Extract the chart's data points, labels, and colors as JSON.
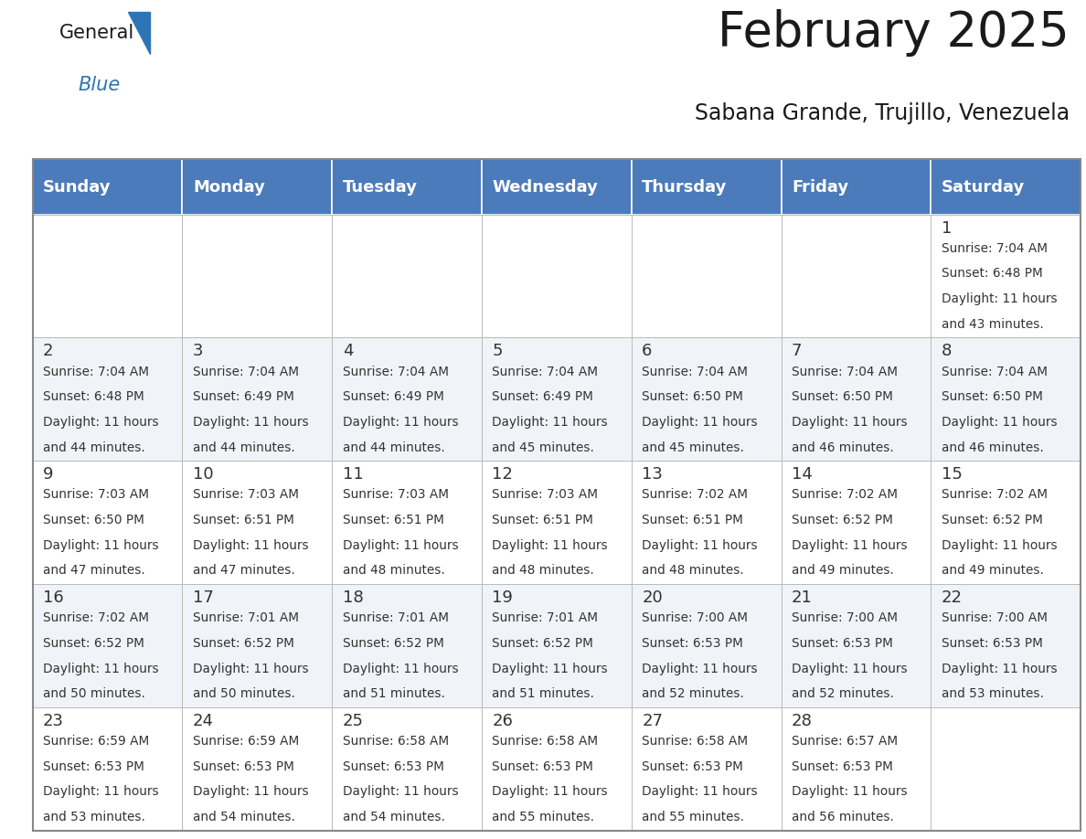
{
  "title": "February 2025",
  "subtitle": "Sabana Grande, Trujillo, Venezuela",
  "header_color": "#4b7bba",
  "header_text_color": "#FFFFFF",
  "cell_bg_white": "#FFFFFF",
  "cell_bg_gray": "#f0f4f8",
  "grid_color": "#aaaaaa",
  "text_color": "#333333",
  "day_num_color": "#333333",
  "day_headers": [
    "Sunday",
    "Monday",
    "Tuesday",
    "Wednesday",
    "Thursday",
    "Friday",
    "Saturday"
  ],
  "title_fontsize": 38,
  "subtitle_fontsize": 17,
  "header_fontsize": 13,
  "day_num_fontsize": 13,
  "info_fontsize": 9.8,
  "calendar": [
    [
      null,
      null,
      null,
      null,
      null,
      null,
      1
    ],
    [
      2,
      3,
      4,
      5,
      6,
      7,
      8
    ],
    [
      9,
      10,
      11,
      12,
      13,
      14,
      15
    ],
    [
      16,
      17,
      18,
      19,
      20,
      21,
      22
    ],
    [
      23,
      24,
      25,
      26,
      27,
      28,
      null
    ]
  ],
  "day_info": {
    "1": {
      "sunrise": "7:04 AM",
      "sunset": "6:48 PM",
      "dl1": "Daylight: 11 hours",
      "dl2": "and 43 minutes."
    },
    "2": {
      "sunrise": "7:04 AM",
      "sunset": "6:48 PM",
      "dl1": "Daylight: 11 hours",
      "dl2": "and 44 minutes."
    },
    "3": {
      "sunrise": "7:04 AM",
      "sunset": "6:49 PM",
      "dl1": "Daylight: 11 hours",
      "dl2": "and 44 minutes."
    },
    "4": {
      "sunrise": "7:04 AM",
      "sunset": "6:49 PM",
      "dl1": "Daylight: 11 hours",
      "dl2": "and 44 minutes."
    },
    "5": {
      "sunrise": "7:04 AM",
      "sunset": "6:49 PM",
      "dl1": "Daylight: 11 hours",
      "dl2": "and 45 minutes."
    },
    "6": {
      "sunrise": "7:04 AM",
      "sunset": "6:50 PM",
      "dl1": "Daylight: 11 hours",
      "dl2": "and 45 minutes."
    },
    "7": {
      "sunrise": "7:04 AM",
      "sunset": "6:50 PM",
      "dl1": "Daylight: 11 hours",
      "dl2": "and 46 minutes."
    },
    "8": {
      "sunrise": "7:04 AM",
      "sunset": "6:50 PM",
      "dl1": "Daylight: 11 hours",
      "dl2": "and 46 minutes."
    },
    "9": {
      "sunrise": "7:03 AM",
      "sunset": "6:50 PM",
      "dl1": "Daylight: 11 hours",
      "dl2": "and 47 minutes."
    },
    "10": {
      "sunrise": "7:03 AM",
      "sunset": "6:51 PM",
      "dl1": "Daylight: 11 hours",
      "dl2": "and 47 minutes."
    },
    "11": {
      "sunrise": "7:03 AM",
      "sunset": "6:51 PM",
      "dl1": "Daylight: 11 hours",
      "dl2": "and 48 minutes."
    },
    "12": {
      "sunrise": "7:03 AM",
      "sunset": "6:51 PM",
      "dl1": "Daylight: 11 hours",
      "dl2": "and 48 minutes."
    },
    "13": {
      "sunrise": "7:02 AM",
      "sunset": "6:51 PM",
      "dl1": "Daylight: 11 hours",
      "dl2": "and 48 minutes."
    },
    "14": {
      "sunrise": "7:02 AM",
      "sunset": "6:52 PM",
      "dl1": "Daylight: 11 hours",
      "dl2": "and 49 minutes."
    },
    "15": {
      "sunrise": "7:02 AM",
      "sunset": "6:52 PM",
      "dl1": "Daylight: 11 hours",
      "dl2": "and 49 minutes."
    },
    "16": {
      "sunrise": "7:02 AM",
      "sunset": "6:52 PM",
      "dl1": "Daylight: 11 hours",
      "dl2": "and 50 minutes."
    },
    "17": {
      "sunrise": "7:01 AM",
      "sunset": "6:52 PM",
      "dl1": "Daylight: 11 hours",
      "dl2": "and 50 minutes."
    },
    "18": {
      "sunrise": "7:01 AM",
      "sunset": "6:52 PM",
      "dl1": "Daylight: 11 hours",
      "dl2": "and 51 minutes."
    },
    "19": {
      "sunrise": "7:01 AM",
      "sunset": "6:52 PM",
      "dl1": "Daylight: 11 hours",
      "dl2": "and 51 minutes."
    },
    "20": {
      "sunrise": "7:00 AM",
      "sunset": "6:53 PM",
      "dl1": "Daylight: 11 hours",
      "dl2": "and 52 minutes."
    },
    "21": {
      "sunrise": "7:00 AM",
      "sunset": "6:53 PM",
      "dl1": "Daylight: 11 hours",
      "dl2": "and 52 minutes."
    },
    "22": {
      "sunrise": "7:00 AM",
      "sunset": "6:53 PM",
      "dl1": "Daylight: 11 hours",
      "dl2": "and 53 minutes."
    },
    "23": {
      "sunrise": "6:59 AM",
      "sunset": "6:53 PM",
      "dl1": "Daylight: 11 hours",
      "dl2": "and 53 minutes."
    },
    "24": {
      "sunrise": "6:59 AM",
      "sunset": "6:53 PM",
      "dl1": "Daylight: 11 hours",
      "dl2": "and 54 minutes."
    },
    "25": {
      "sunrise": "6:58 AM",
      "sunset": "6:53 PM",
      "dl1": "Daylight: 11 hours",
      "dl2": "and 54 minutes."
    },
    "26": {
      "sunrise": "6:58 AM",
      "sunset": "6:53 PM",
      "dl1": "Daylight: 11 hours",
      "dl2": "and 55 minutes."
    },
    "27": {
      "sunrise": "6:58 AM",
      "sunset": "6:53 PM",
      "dl1": "Daylight: 11 hours",
      "dl2": "and 55 minutes."
    },
    "28": {
      "sunrise": "6:57 AM",
      "sunset": "6:53 PM",
      "dl1": "Daylight: 11 hours",
      "dl2": "and 56 minutes."
    }
  }
}
